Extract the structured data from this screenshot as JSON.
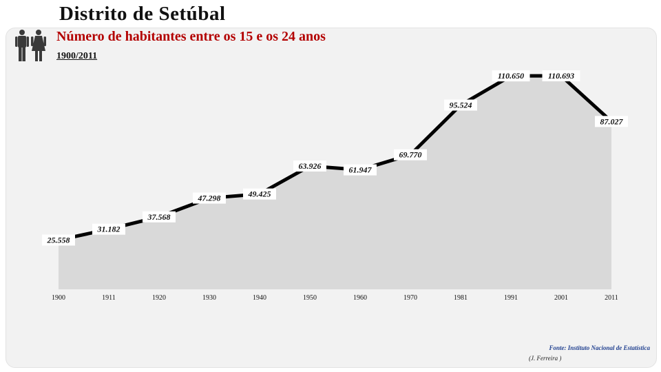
{
  "header": {
    "title": "Distrito de  Setúbal",
    "subtitle": "Número de habitantes entre os 15 e os 24 anos",
    "period": "1900/2011"
  },
  "icons": {
    "people": "man-woman-icon"
  },
  "colors": {
    "subtitle": "#b30000",
    "line": "#000000",
    "area": "#d9d9d9",
    "background": "#f2f2f2",
    "source": "#1f3f8f"
  },
  "chart_data": {
    "type": "area",
    "title": "Número de habitantes entre os 15 e os 24 anos",
    "categories": [
      "1900",
      "1911",
      "1920",
      "1930",
      "1940",
      "1950",
      "1960",
      "1970",
      "1981",
      "1991",
      "2001",
      "2011"
    ],
    "values": [
      25558,
      31182,
      37568,
      47298,
      49425,
      63926,
      61947,
      69770,
      95524,
      110650,
      110693,
      87027
    ],
    "labels": [
      "25.558",
      "31.182",
      "37.568",
      "47.298",
      "49.425",
      "63.926",
      "61.947",
      "69.770",
      "95.524",
      "110.650",
      "110.693",
      "87.027"
    ],
    "ylim": [
      0,
      150000
    ],
    "grid": false,
    "legend": "none"
  },
  "footer": {
    "source": "Fonte: Instituto Nacional de Estatística",
    "author": "(J. Ferreira )"
  }
}
